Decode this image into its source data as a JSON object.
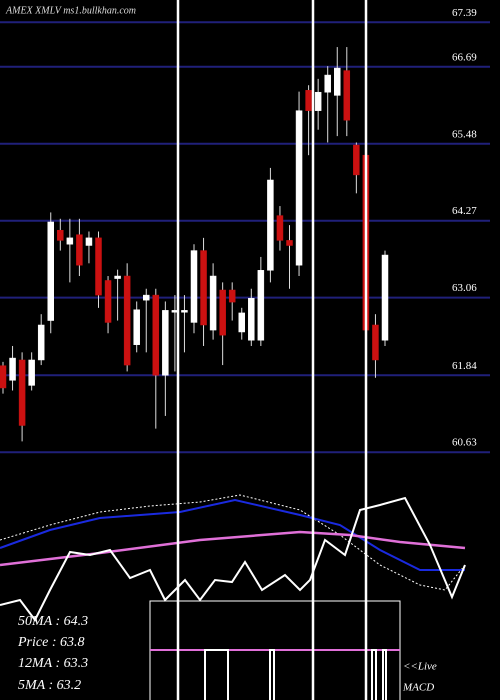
{
  "chart_data": {
    "type": "candlestick",
    "title": "AMEX  XMLV ms1.bullkhan.com",
    "ylim": [
      60.35,
      67.74
    ],
    "yticks": [
      67.39,
      66.69,
      65.48,
      64.27,
      63.06,
      61.84,
      60.63
    ],
    "grid": true,
    "up_color": "#ffffff",
    "down_color": "#cc1111",
    "grid_color": "#20207a",
    "open": [
      61.99,
      61.76,
      62.08,
      61.68,
      62.08,
      62.7,
      64.12,
      63.9,
      64.05,
      63.88,
      64.0,
      63.33,
      63.36,
      63.4,
      62.32,
      63.02,
      63.1,
      61.84,
      62.83,
      62.83,
      62.67,
      63.8,
      62.55,
      63.18,
      63.18,
      62.52,
      62.39,
      62.39,
      63.49,
      64.35,
      63.96,
      63.57,
      66.32,
      66.0,
      66.29,
      66.24,
      66.63,
      65.46,
      65.3,
      62.63,
      62.39
    ],
    "high": [
      62.05,
      62.3,
      62.2,
      62.2,
      62.8,
      64.4,
      64.3,
      64.3,
      64.3,
      64.1,
      64.1,
      63.4,
      63.5,
      63.6,
      63.0,
      63.2,
      63.2,
      63.0,
      63.1,
      63.1,
      63.9,
      64.0,
      63.6,
      63.3,
      63.3,
      62.9,
      63.2,
      63.7,
      65.1,
      64.5,
      64.2,
      66.3,
      66.4,
      66.5,
      66.7,
      67.0,
      67.0,
      65.5,
      65.4,
      62.8,
      63.8
    ],
    "low": [
      61.55,
      61.6,
      60.8,
      61.6,
      62.0,
      62.5,
      63.8,
      63.3,
      63.4,
      63.6,
      62.9,
      62.5,
      62.7,
      61.9,
      62.2,
      62.2,
      61.0,
      61.2,
      61.9,
      62.2,
      62.5,
      62.3,
      62.4,
      62.0,
      62.7,
      62.4,
      62.3,
      62.3,
      63.3,
      63.8,
      63.2,
      63.4,
      65.3,
      65.7,
      65.5,
      65.6,
      65.6,
      64.7,
      62.3,
      61.8,
      62.3
    ],
    "close": [
      61.64,
      62.11,
      61.05,
      62.08,
      62.63,
      64.25,
      63.96,
      64.0,
      63.57,
      64.0,
      63.1,
      62.67,
      63.4,
      62.0,
      62.87,
      63.1,
      61.84,
      62.86,
      62.86,
      62.86,
      63.8,
      62.63,
      63.4,
      62.47,
      62.99,
      62.82,
      63.05,
      63.49,
      64.91,
      63.96,
      63.88,
      66.0,
      66.0,
      66.29,
      66.56,
      66.67,
      65.85,
      64.99,
      62.55,
      62.08,
      63.73
    ]
  },
  "info_lines": [
    "50MA : 64.3",
    "Price   : 63.8",
    "12MA : 63.3",
    "5MA   : 63.2"
  ],
  "live_label": "<<Live",
  "indicator_label": "MACD"
}
